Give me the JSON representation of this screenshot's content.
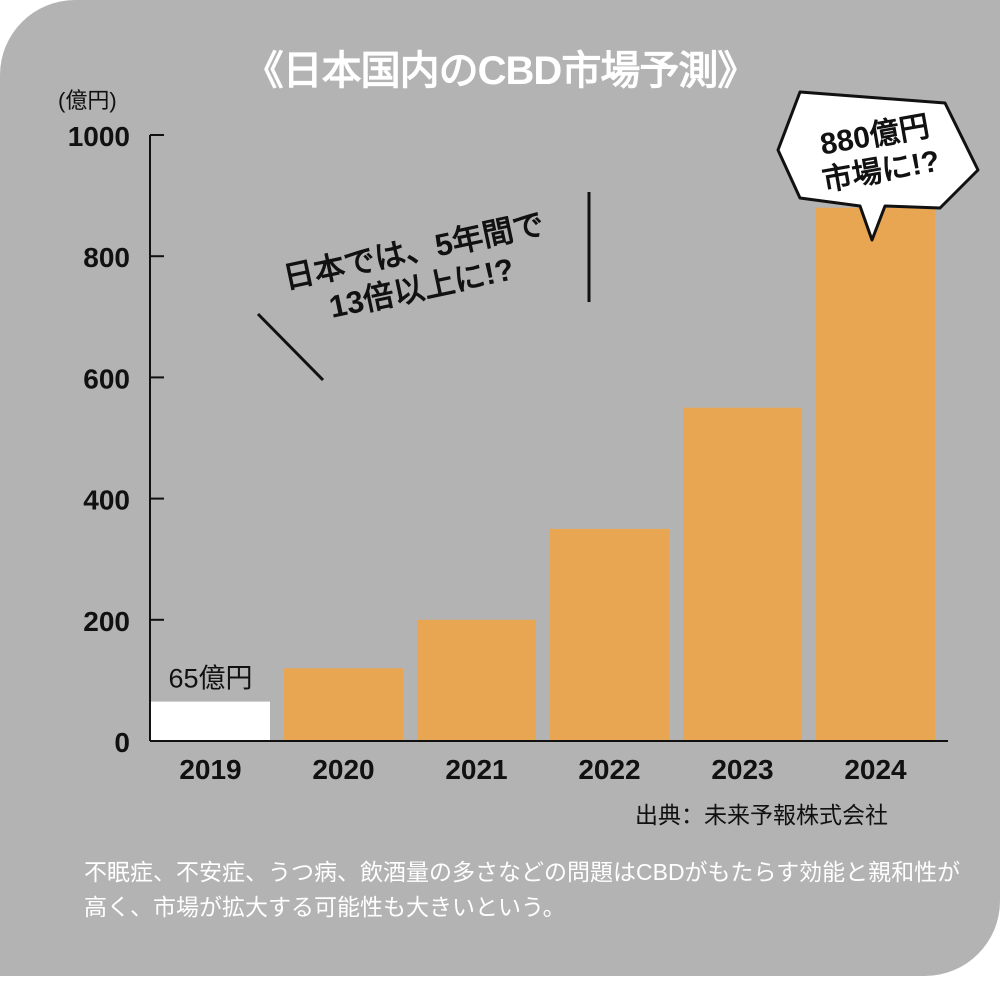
{
  "title": "《日本国内のCBD市場予測》",
  "source": "出典：未来予報株式会社",
  "note": "不眠症、不安症、うつ病、飲酒量の多さなどの問題はCBDがもたらす効能と親和性が高く、市場が拡大する可能性も大きいという。",
  "annotation": {
    "line1": "日本では、5年間で",
    "line2": "13倍以上に!?"
  },
  "callout": {
    "line1": "880億円",
    "line2": "市場に!?"
  },
  "colors": {
    "background": "#b3b3b3",
    "bar": "#e8a552",
    "highlight_bar": "#ffffff",
    "title": "#ffffff"
  },
  "chart_data": {
    "type": "bar",
    "title": "《日本国内のCBD市場予測》",
    "ylabel": "(億円)",
    "xlabel": "",
    "categories": [
      "2019",
      "2020",
      "2021",
      "2022",
      "2023",
      "2024"
    ],
    "values": [
      65,
      120,
      200,
      350,
      550,
      880
    ],
    "ylim": [
      0,
      1000
    ],
    "yticks": [
      "0",
      "200",
      "400",
      "600",
      "800",
      "1000"
    ],
    "data_labels": [
      {
        "category": "2019",
        "text": "65億円"
      }
    ],
    "grid": false
  }
}
